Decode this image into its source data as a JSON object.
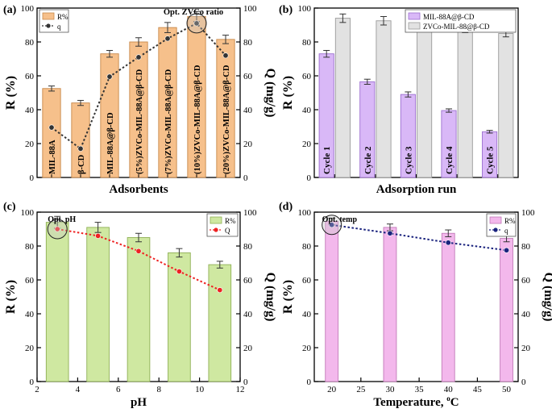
{
  "figure": {
    "panel_count": 4
  },
  "chart_data": [
    {
      "id": "a",
      "type": "bar",
      "panel_label": "(a)",
      "xlabel": "Adsorbents",
      "ylabel": "R (%)",
      "y2label": "Q (mg/g)",
      "ylim": [
        0,
        100
      ],
      "y2lim": [
        0,
        100
      ],
      "yticks": [
        0,
        20,
        40,
        60,
        80,
        100
      ],
      "y2ticks": [
        0,
        20,
        40,
        60,
        80,
        100
      ],
      "categories": [
        "MIL-88A",
        "β-CD",
        "MIL-88A@β-CD",
        "(5%)ZVCo-MIL-88A@β-CD",
        "(7%)ZVCo-MIL-88A@β-CD",
        "(10%)ZVCo-MIL-88A@β-CD",
        "(20%)ZVCo-MIL-88A@β-CD"
      ],
      "series": [
        {
          "name": "R%",
          "kind": "bar",
          "axis": "left",
          "color": "#f6c08b",
          "edge": "#c8894a",
          "values": [
            52.5,
            44,
            73,
            80,
            88.5,
            95,
            81.5
          ],
          "errors": [
            1.5,
            1.5,
            2,
            2.5,
            3,
            3,
            2.5
          ]
        },
        {
          "name": "q",
          "kind": "line",
          "axis": "right",
          "color": "#333333",
          "values": [
            29.5,
            17,
            59.5,
            71,
            82,
            91,
            72
          ]
        }
      ],
      "legend": [
        "R%",
        "q"
      ],
      "legend_position": "top-left",
      "annotation": "Opt. ZVCo ratio",
      "highlight_index": 5
    },
    {
      "id": "b",
      "type": "bar",
      "panel_label": "(b)",
      "xlabel": "Adsorption run",
      "ylabel": "R (%)",
      "ylim": [
        0,
        100
      ],
      "yticks": [
        0,
        20,
        40,
        60,
        80,
        100
      ],
      "categories": [
        "Cycle 1",
        "Cycle 2",
        "Cycle 3",
        "Cycle 4",
        "Cycle 5"
      ],
      "series": [
        {
          "name": "MIL-88A@β-CD",
          "kind": "bar",
          "color": "#d9b8f7",
          "edge": "#9c6fcf",
          "values": [
            73,
            56.5,
            49,
            39.5,
            27
          ],
          "errors": [
            2,
            1.5,
            1.5,
            1,
            0.8
          ]
        },
        {
          "name": "ZVCo-MIL-88@β-CD",
          "kind": "bar",
          "color": "#e2e2e2",
          "edge": "#9a9a9a",
          "values": [
            94,
            92.5,
            89.5,
            87.5,
            85
          ],
          "errors": [
            2.5,
            2.5,
            2,
            2,
            2
          ]
        }
      ],
      "legend": [
        "MIL-88A@β-CD",
        "ZVCo-MIL-88@β-CD"
      ],
      "legend_position": "top-right"
    },
    {
      "id": "c",
      "type": "bar",
      "panel_label": "(c)",
      "xlabel": "pH",
      "ylabel": "R (%)",
      "y2label": "Q (mg/g)",
      "xlim": [
        2,
        12
      ],
      "ylim": [
        0,
        100
      ],
      "y2lim": [
        0,
        100
      ],
      "xticks": [
        2,
        4,
        6,
        8,
        10,
        12
      ],
      "yticks": [
        0,
        20,
        40,
        60,
        80,
        100
      ],
      "y2ticks": [
        0,
        20,
        40,
        60,
        80,
        100
      ],
      "bar_width": 1.1,
      "series": [
        {
          "name": "R%",
          "kind": "bar",
          "axis": "left",
          "color": "#cfe8a1",
          "edge": "#8fb055",
          "x": [
            3,
            5,
            7,
            9,
            11
          ],
          "values": [
            94,
            91,
            85,
            76,
            69
          ],
          "errors": [
            3.5,
            3,
            2.5,
            2.5,
            2
          ]
        },
        {
          "name": "Q",
          "kind": "line",
          "axis": "right",
          "color": "#ee2222",
          "x": [
            3,
            5,
            7,
            9,
            11
          ],
          "values": [
            90,
            86,
            77,
            65,
            54
          ]
        }
      ],
      "legend": [
        "R%",
        "Q"
      ],
      "legend_position": "top-right",
      "annotation": "Opt. pH",
      "highlight_index": 0
    },
    {
      "id": "d",
      "type": "bar",
      "panel_label": "(d)",
      "xlabel": "Temperature, ",
      "xlabel_unit_sup": "o",
      "xlabel_unit": "C",
      "ylabel": "R (%)",
      "y2label": "Q (mg/g)",
      "xlim": [
        17,
        52
      ],
      "ylim": [
        0,
        100
      ],
      "y2lim": [
        0,
        100
      ],
      "xticks": [
        20,
        25,
        30,
        35,
        40,
        45,
        50
      ],
      "yticks": [
        0,
        20,
        40,
        60,
        80,
        100
      ],
      "y2ticks": [
        0,
        20,
        40,
        60,
        80,
        100
      ],
      "bar_width": 2.2,
      "series": [
        {
          "name": "R%",
          "kind": "bar",
          "axis": "left",
          "color": "#f3b8ec",
          "edge": "#c27ab8",
          "x": [
            20,
            30,
            40,
            50
          ],
          "values": [
            94.5,
            91,
            87.5,
            84.5
          ],
          "errors": [
            2,
            2,
            2,
            2
          ]
        },
        {
          "name": "q",
          "kind": "line",
          "axis": "right",
          "color": "#1a237e",
          "x": [
            20,
            30,
            40,
            50
          ],
          "values": [
            92.5,
            87.5,
            82,
            77.5
          ]
        }
      ],
      "legend": [
        "R%",
        "q"
      ],
      "legend_position": "top-right",
      "annotation": "Opt. temp",
      "highlight_index": 0
    }
  ]
}
